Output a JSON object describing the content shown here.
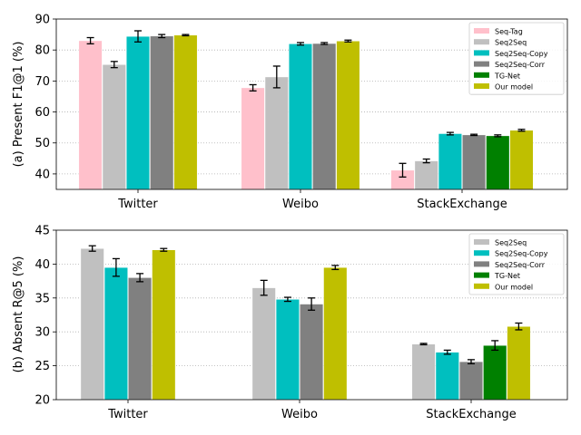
{
  "chart_data": [
    {
      "type": "bar",
      "ylabel": "(a) Present F1@1 (%)",
      "ylim": [
        35,
        90
      ],
      "yticks": [
        40,
        50,
        60,
        70,
        80,
        90
      ],
      "categories": [
        "Twitter",
        "Weibo",
        "StackExchange"
      ],
      "grid": "y, dotted",
      "legend_position": "top-right",
      "series": [
        {
          "name": "Seq-Tag",
          "color": "#ffc0cb",
          "values": [
            83.0,
            67.8,
            41.2
          ],
          "errors": [
            1.0,
            1.0,
            2.2
          ]
        },
        {
          "name": "Seq2Seq",
          "color": "#c0c0c0",
          "values": [
            75.3,
            71.3,
            44.2
          ],
          "errors": [
            1.0,
            3.5,
            0.6
          ]
        },
        {
          "name": "Seq2Seq-Copy",
          "color": "#00bfbf",
          "values": [
            84.4,
            82.0,
            53.0
          ],
          "errors": [
            1.8,
            0.4,
            0.4
          ]
        },
        {
          "name": "Seq2Seq-Corr",
          "color": "#808080",
          "values": [
            84.5,
            82.1,
            52.6
          ],
          "errors": [
            0.5,
            0.3,
            0.2
          ]
        },
        {
          "name": "TG-Net",
          "color": "#008000",
          "values": [
            null,
            null,
            52.3
          ],
          "errors": [
            null,
            null,
            0.3
          ]
        },
        {
          "name": "Our model",
          "color": "#bfbf00",
          "values": [
            84.8,
            82.9,
            54.1
          ],
          "errors": [
            0.2,
            0.3,
            0.3
          ]
        }
      ]
    },
    {
      "type": "bar",
      "ylabel": "(b) Absent R@5 (%)",
      "ylim": [
        20,
        45
      ],
      "yticks": [
        20,
        25,
        30,
        35,
        40,
        45
      ],
      "categories": [
        "Twitter",
        "Weibo",
        "StackExchange"
      ],
      "grid": "y, dotted",
      "legend_position": "top-right",
      "series": [
        {
          "name": "Seq2Seq",
          "color": "#c0c0c0",
          "values": [
            42.3,
            36.5,
            28.2
          ],
          "errors": [
            0.4,
            1.1,
            0.1
          ]
        },
        {
          "name": "Seq2Seq-Copy",
          "color": "#00bfbf",
          "values": [
            39.5,
            34.8,
            27.0
          ],
          "errors": [
            1.3,
            0.3,
            0.3
          ]
        },
        {
          "name": "Seq2Seq-Corr",
          "color": "#808080",
          "values": [
            38.0,
            34.1,
            25.6
          ],
          "errors": [
            0.6,
            0.9,
            0.3
          ]
        },
        {
          "name": "TG-Net",
          "color": "#008000",
          "values": [
            null,
            null,
            28.0
          ],
          "errors": [
            null,
            null,
            0.7
          ]
        },
        {
          "name": "Our model",
          "color": "#bfbf00",
          "values": [
            42.1,
            39.5,
            30.8
          ],
          "errors": [
            0.2,
            0.3,
            0.5
          ]
        }
      ]
    }
  ]
}
